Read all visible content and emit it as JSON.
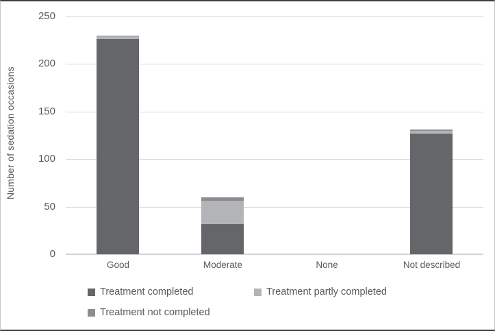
{
  "chart_data": {
    "type": "bar",
    "stacked": true,
    "title": "",
    "xlabel": "",
    "ylabel": "Number of sedation occasions",
    "categories": [
      "Good",
      "Moderate",
      "None",
      "Not described"
    ],
    "series": [
      {
        "name": "Treatment completed",
        "color": "#646669",
        "values": [
          226,
          32,
          0,
          127
        ]
      },
      {
        "name": "Treatment partly completed",
        "color": "#b2b4b7",
        "values": [
          3,
          24,
          0,
          3
        ]
      },
      {
        "name": "Treatment not completed",
        "color": "#8a8c8f",
        "values": [
          1,
          4,
          0,
          1
        ]
      }
    ],
    "ylim": [
      0,
      250
    ],
    "yticks": [
      0,
      50,
      100,
      150,
      200,
      250
    ],
    "grid": true,
    "legend_position": "bottom"
  },
  "colors": {
    "gridline": "#d9d9d9",
    "axis_line": "#d3d3d3",
    "text": "#595959",
    "figure_border": "#3f3f3f"
  }
}
